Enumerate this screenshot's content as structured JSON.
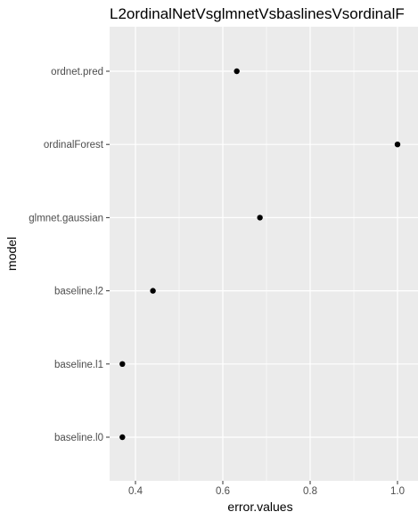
{
  "chart_data": {
    "type": "scatter",
    "title": "L2ordinalNetVsglmnetVsbaslinesVsordinalF",
    "xlabel": "error.values",
    "ylabel": "model",
    "categories": [
      "baseline.l0",
      "baseline.l1",
      "baseline.l2",
      "glmnet.gaussian",
      "ordinalForest",
      "ordnet.pred"
    ],
    "values": [
      0.37,
      0.37,
      0.44,
      0.685,
      1.0,
      0.632
    ],
    "xlim": [
      0.337,
      1.033
    ],
    "xticks": [
      0.4,
      0.6,
      0.8,
      1.0
    ],
    "xtick_labels": [
      "0.4",
      "0.6",
      "0.8",
      "1.0"
    ],
    "grid": true,
    "legend": "none",
    "colors": {
      "panel_background": "#ebebeb",
      "grid_major": "#ffffff",
      "point": "#000000",
      "tick_label": "#4d4d4d"
    }
  }
}
